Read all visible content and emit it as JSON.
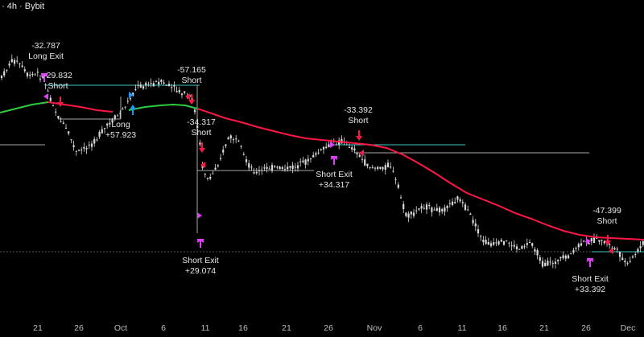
{
  "header": {
    "symbol_text": "· 4h · Bybit"
  },
  "colors": {
    "background": "#000000",
    "candle": "#d9d9d9",
    "ema": "#ff1744",
    "ema_early": "#2ecc40",
    "level_teal": "#40c4c4",
    "level_white": "#a9a9a9",
    "entry_marker": "#ff1744",
    "exit_marker": "#e040fb",
    "long_marker": "#2196f3"
  },
  "chart_data": {
    "type": "candlestick",
    "x_axis_ticks": [
      "21",
      "26",
      "Oct",
      "6",
      "11",
      "16",
      "21",
      "26",
      "Nov",
      "6",
      "11",
      "16",
      "21",
      "26",
      "Dec"
    ],
    "series": [
      {
        "name": "",
        "type": "candlestick",
        "values_relative": [
          0.22,
          0.2,
          0.25,
          0.28,
          0.26,
          0.3,
          0.33,
          0.36,
          0.4,
          0.44,
          0.43,
          0.4,
          0.37,
          0.34,
          0.31,
          0.3,
          0.27,
          0.24,
          0.25,
          0.28,
          0.35,
          0.46,
          0.48,
          0.5,
          0.52,
          0.51,
          0.49,
          0.47,
          0.46,
          0.45,
          0.47,
          0.51,
          0.55,
          0.58,
          0.62,
          0.61,
          0.57,
          0.54,
          0.56,
          0.6,
          0.63,
          0.67,
          0.7,
          0.73,
          0.72,
          0.7,
          0.72,
          0.74,
          0.76,
          0.77,
          0.76,
          0.78,
          0.79,
          0.77,
          0.76
        ]
      },
      {
        "name": "",
        "type": "line",
        "color_key": "ema"
      }
    ],
    "annotations": [
      {
        "label": "-32.787",
        "sublabel": "Long Exit",
        "kind": "exit"
      },
      {
        "label": "-29.832",
        "sublabel": "Short",
        "kind": "entry"
      },
      {
        "label": "Long",
        "sublabel": "+57.923",
        "kind": "long"
      },
      {
        "label": "-57.165",
        "sublabel": "Short",
        "kind": "entry"
      },
      {
        "label": "-34.317",
        "sublabel": "Short",
        "kind": "entry"
      },
      {
        "label": "Short Exit",
        "sublabel": "+29.074",
        "kind": "exit"
      },
      {
        "label": "-33.392",
        "sublabel": "Short",
        "kind": "entry"
      },
      {
        "label": "Short Exit",
        "sublabel": "+34.317",
        "kind": "exit"
      },
      {
        "label": "-47.399",
        "sublabel": "Short",
        "kind": "entry"
      },
      {
        "label": "Short Exit",
        "sublabel": "+33.392",
        "kind": "exit"
      }
    ],
    "grid": false,
    "legend": "none"
  }
}
